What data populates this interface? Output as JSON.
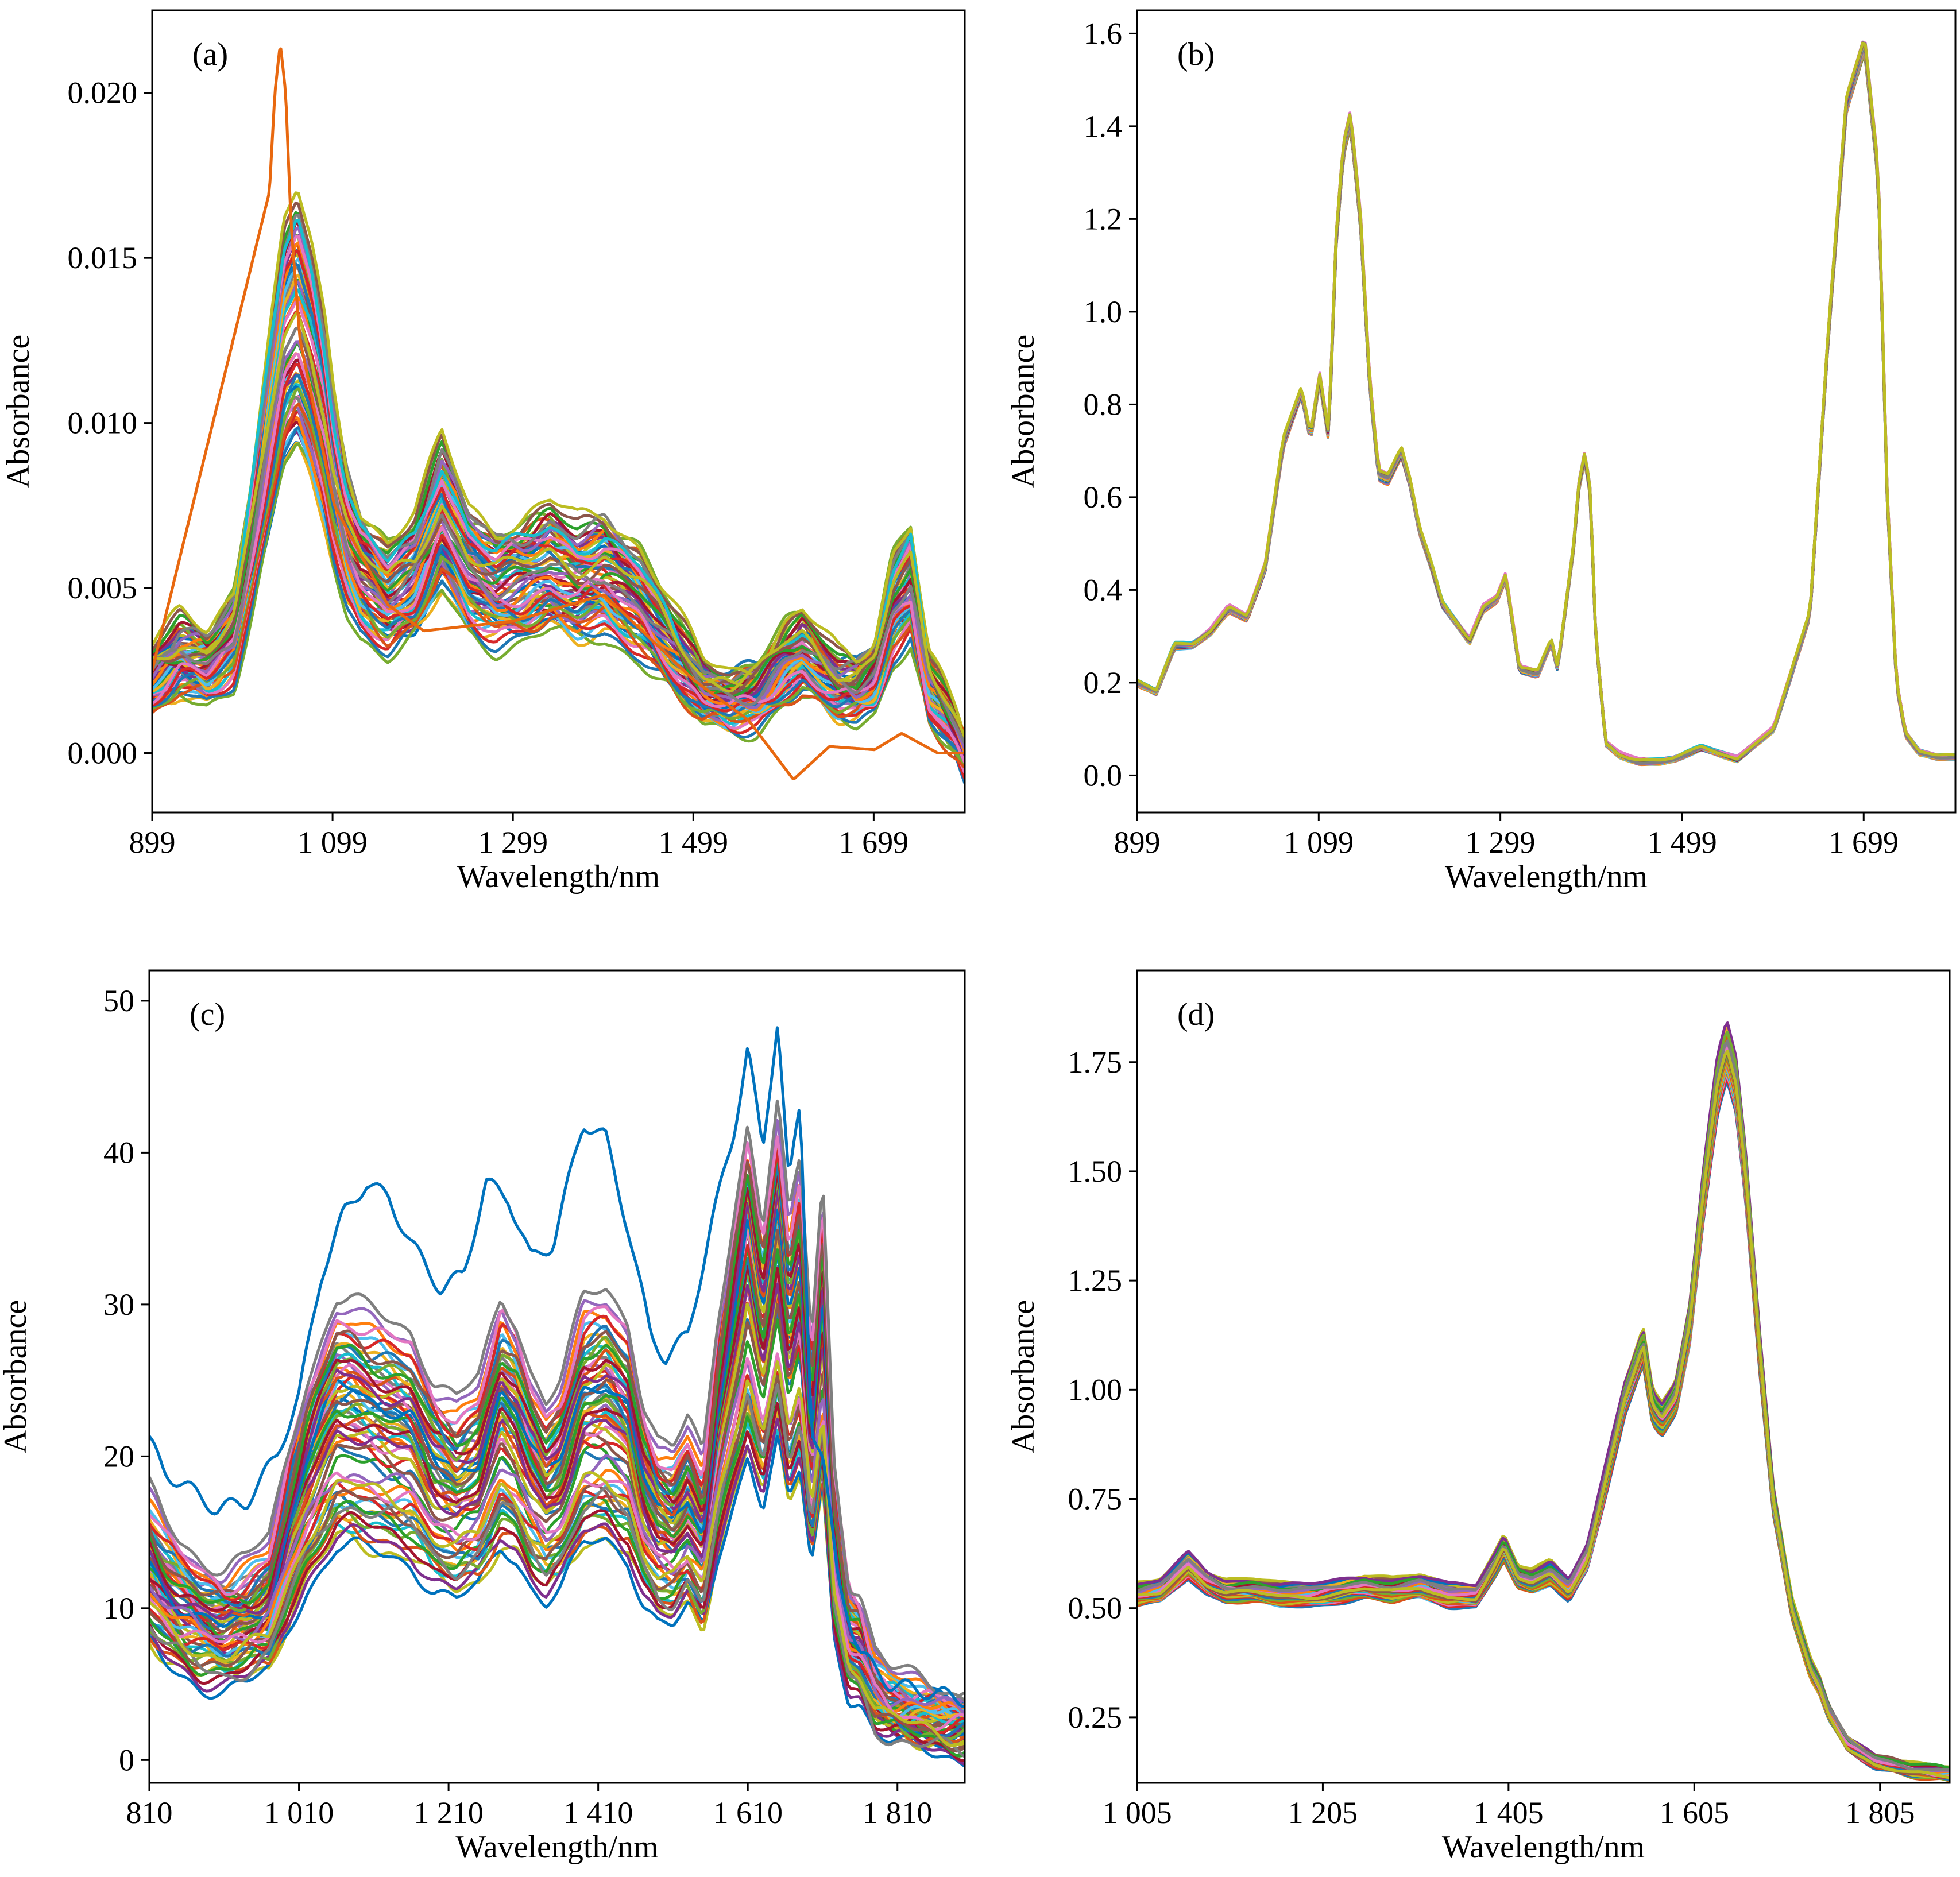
{
  "chart_data": [
    {
      "type": "line",
      "panel_label": "(a)",
      "xlabel": "Wavelength/nm",
      "ylabel": "Absorbance",
      "xlim": [
        899,
        1800
      ],
      "ylim": [
        -0.0018,
        0.0225
      ],
      "xticks": [
        899,
        1099,
        1299,
        1499,
        1699
      ],
      "xtick_labels": [
        "899",
        "1 099",
        "1 299",
        "1 499",
        "1 699"
      ],
      "yticks": [
        0.0,
        0.005,
        0.01,
        0.015,
        0.02
      ],
      "ytick_labels": [
        "0.000",
        "0.005",
        "0.010",
        "0.015",
        "0.020"
      ],
      "series_count": 60,
      "representative_spectrum": {
        "x": [
          899,
          930,
          960,
          990,
          1010,
          1030,
          1045,
          1060,
          1075,
          1090,
          1100,
          1115,
          1130,
          1160,
          1190,
          1220,
          1250,
          1280,
          1310,
          1340,
          1370,
          1400,
          1440,
          1480,
          1510,
          1540,
          1570,
          1600,
          1620,
          1640,
          1660,
          1680,
          1700,
          1720,
          1740,
          1760,
          1790,
          1800
        ],
        "y": [
          0.0022,
          0.0029,
          0.0026,
          0.0036,
          0.0065,
          0.0098,
          0.0122,
          0.013,
          0.0118,
          0.01,
          0.0083,
          0.0065,
          0.0055,
          0.0047,
          0.0053,
          0.0072,
          0.0056,
          0.005,
          0.0052,
          0.0056,
          0.0052,
          0.0054,
          0.0046,
          0.003,
          0.0018,
          0.0016,
          0.0018,
          0.0027,
          0.003,
          0.0025,
          0.002,
          0.0019,
          0.0024,
          0.0045,
          0.0052,
          0.002,
          0.0006,
          0.0
        ]
      },
      "extremes": {
        "max_peak": {
          "x": 1041,
          "y": 0.0215
        },
        "min_value": {
          "x": 1610,
          "y": -0.0008
        }
      }
    },
    {
      "type": "line",
      "panel_label": "(b)",
      "xlabel": "Wavelength/nm",
      "ylabel": "Absorbance",
      "xlim": [
        899,
        1800
      ],
      "ylim": [
        -0.08,
        1.65
      ],
      "xticks": [
        899,
        1099,
        1299,
        1499,
        1699
      ],
      "xtick_labels": [
        "899",
        "1 099",
        "1 299",
        "1 499",
        "1 699"
      ],
      "yticks": [
        0.0,
        0.2,
        0.4,
        0.6,
        0.8,
        1.0,
        1.2,
        1.4,
        1.6
      ],
      "ytick_labels": [
        "0.0",
        "0.2",
        "0.4",
        "0.6",
        "0.8",
        "1.0",
        "1.2",
        "1.4",
        "1.6"
      ],
      "series_count": 60,
      "representative_spectrum": {
        "x": [
          899,
          920,
          940,
          960,
          980,
          1000,
          1020,
          1040,
          1060,
          1080,
          1090,
          1100,
          1110,
          1118,
          1126,
          1134,
          1145,
          1155,
          1165,
          1175,
          1190,
          1200,
          1210,
          1222,
          1235,
          1250,
          1265,
          1280,
          1295,
          1305,
          1320,
          1340,
          1355,
          1362,
          1370,
          1380,
          1385,
          1392,
          1398,
          1404,
          1415,
          1430,
          1442,
          1452,
          1460,
          1468,
          1475,
          1490,
          1520,
          1560,
          1600,
          1640,
          1660,
          1680,
          1700,
          1715,
          1725,
          1735,
          1745,
          1760,
          1780,
          1800
        ],
        "y": [
          0.2,
          0.18,
          0.28,
          0.28,
          0.31,
          0.36,
          0.34,
          0.45,
          0.72,
          0.83,
          0.73,
          0.86,
          0.73,
          1.15,
          1.35,
          1.42,
          1.2,
          0.85,
          0.65,
          0.64,
          0.7,
          0.63,
          0.53,
          0.46,
          0.37,
          0.33,
          0.29,
          0.36,
          0.38,
          0.43,
          0.23,
          0.22,
          0.29,
          0.23,
          0.35,
          0.5,
          0.62,
          0.69,
          0.61,
          0.3,
          0.07,
          0.045,
          0.035,
          0.03,
          0.03,
          0.03,
          0.03,
          0.035,
          0.06,
          0.035,
          0.1,
          0.35,
          0.95,
          1.45,
          1.58,
          1.3,
          0.6,
          0.2,
          0.09,
          0.05,
          0.04,
          0.04
        ]
      }
    },
    {
      "type": "line",
      "panel_label": "(c)",
      "xlabel": "Wavelength/nm",
      "ylabel": "Absorbance",
      "xlim": [
        810,
        1900
      ],
      "ylim": [
        -1.5,
        52
      ],
      "xticks": [
        810,
        1010,
        1210,
        1410,
        1610,
        1810
      ],
      "xtick_labels": [
        "810",
        "1 010",
        "1 210",
        "1 410",
        "1 610",
        "1 810"
      ],
      "yticks": [
        0,
        10,
        20,
        30,
        40,
        50
      ],
      "ytick_labels": [
        "0",
        "10",
        "20",
        "30",
        "40",
        "50"
      ],
      "series_count": 60,
      "representative_spectrum": {
        "x": [
          810,
          830,
          850,
          880,
          910,
          940,
          970,
          1000,
          1020,
          1040,
          1060,
          1080,
          1100,
          1130,
          1160,
          1190,
          1220,
          1250,
          1280,
          1300,
          1320,
          1340,
          1360,
          1390,
          1420,
          1450,
          1470,
          1490,
          1510,
          1530,
          1550,
          1570,
          1590,
          1610,
          1630,
          1650,
          1665,
          1680,
          1695,
          1710,
          1725,
          1745,
          1760,
          1780,
          1800,
          1830,
          1860,
          1900
        ],
        "y": [
          12.5,
          11,
          10,
          9,
          8.5,
          9,
          10,
          15,
          18,
          20,
          22,
          22,
          21.5,
          21,
          20.5,
          18,
          17,
          18,
          22,
          21,
          18.5,
          17,
          18,
          22,
          22.5,
          21,
          17,
          15,
          14.5,
          16,
          14,
          21,
          26,
          31,
          26,
          32,
          26,
          29,
          20,
          28,
          14,
          8,
          7.5,
          4.5,
          3.5,
          3.0,
          2.6,
          2.2
        ]
      },
      "outlier_spectrum": {
        "x": [
          810,
          830,
          860,
          900,
          940,
          980,
          1010,
          1040,
          1070,
          1100,
          1130,
          1160,
          1200,
          1230,
          1260,
          1290,
          1320,
          1350,
          1390,
          1420,
          1450,
          1480,
          1500,
          1530,
          1560,
          1590,
          1610,
          1630,
          1650,
          1665,
          1680,
          1695,
          1710,
          1730,
          1760,
          1800,
          1850,
          1900
        ],
        "y": [
          21,
          19,
          18,
          16.5,
          17,
          20,
          24,
          32,
          36,
          38,
          37,
          34,
          31,
          32,
          38,
          37,
          33,
          34,
          42,
          41,
          35,
          28,
          26.5,
          28,
          35,
          41,
          47,
          40,
          49,
          38,
          43,
          22,
          20,
          12,
          7,
          5,
          4.5,
          4.0
        ]
      }
    },
    {
      "type": "line",
      "panel_label": "(d)",
      "xlabel": "Wavelength/nm",
      "ylabel": "Absorbance",
      "xlim": [
        1005,
        1880
      ],
      "ylim": [
        0.1,
        1.96
      ],
      "xticks": [
        1005,
        1205,
        1405,
        1605,
        1805
      ],
      "xtick_labels": [
        "1 005",
        "1 205",
        "1 405",
        "1 605",
        "1 805"
      ],
      "yticks": [
        0.25,
        0.5,
        0.75,
        1.0,
        1.25,
        1.5,
        1.75
      ],
      "ytick_labels": [
        "0.25",
        "0.50",
        "0.75",
        "1.00",
        "1.25",
        "1.50",
        "1.75"
      ],
      "series_count": 60,
      "representative_spectrum": {
        "x": [
          1005,
          1030,
          1060,
          1080,
          1100,
          1130,
          1160,
          1190,
          1220,
          1250,
          1280,
          1310,
          1340,
          1370,
          1390,
          1400,
          1415,
          1430,
          1450,
          1470,
          1490,
          1510,
          1530,
          1550,
          1560,
          1570,
          1585,
          1600,
          1615,
          1630,
          1640,
          1650,
          1660,
          1675,
          1690,
          1710,
          1730,
          1740,
          1750,
          1770,
          1800,
          1840,
          1880
        ],
        "y": [
          0.53,
          0.54,
          0.6,
          0.56,
          0.54,
          0.54,
          0.53,
          0.53,
          0.54,
          0.55,
          0.54,
          0.55,
          0.53,
          0.53,
          0.6,
          0.64,
          0.57,
          0.56,
          0.58,
          0.54,
          0.62,
          0.8,
          0.98,
          1.1,
          0.96,
          0.93,
          0.98,
          1.15,
          1.45,
          1.7,
          1.78,
          1.7,
          1.5,
          1.1,
          0.75,
          0.5,
          0.36,
          0.32,
          0.26,
          0.19,
          0.15,
          0.13,
          0.12
        ]
      }
    }
  ],
  "palette": [
    "#1f77b4",
    "#ff7f0e",
    "#2ca02c",
    "#d62728",
    "#9467bd",
    "#8c564b",
    "#e377c2",
    "#7f7f7f",
    "#bcbd22",
    "#17becf",
    "#0072bd",
    "#d95319",
    "#edb120",
    "#7e2f8e",
    "#77ac30",
    "#4dbeee",
    "#a2142f"
  ]
}
